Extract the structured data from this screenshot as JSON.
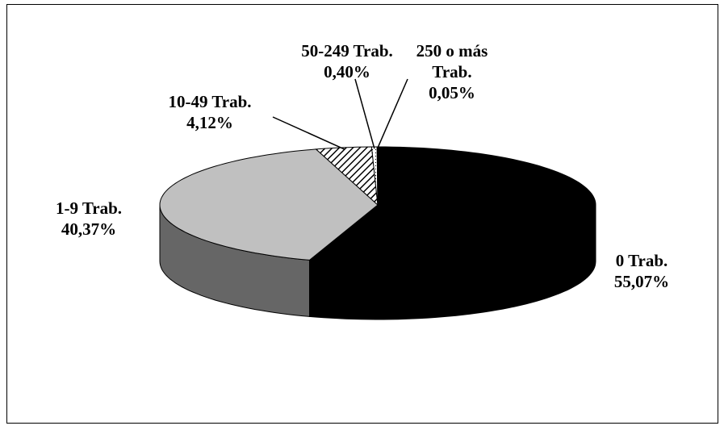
{
  "chart_data": {
    "type": "pie3d",
    "categories": [
      "0 Trab.",
      "1-9 Trab.",
      "10-49 Trab.",
      "50-249 Trab.",
      "250 o más Trab."
    ],
    "values": [
      55.07,
      40.37,
      4.12,
      0.4,
      0.05
    ],
    "value_labels": [
      "55,07%",
      "40,37%",
      "4,12%",
      "0,40%",
      "0,05%"
    ],
    "colors": [
      "#000000",
      "#c0c0c0",
      "hatch",
      "dots",
      "dots"
    ],
    "side_colors": [
      "#000000",
      "#666666",
      "#333333",
      "#999999",
      "#999999"
    ]
  }
}
